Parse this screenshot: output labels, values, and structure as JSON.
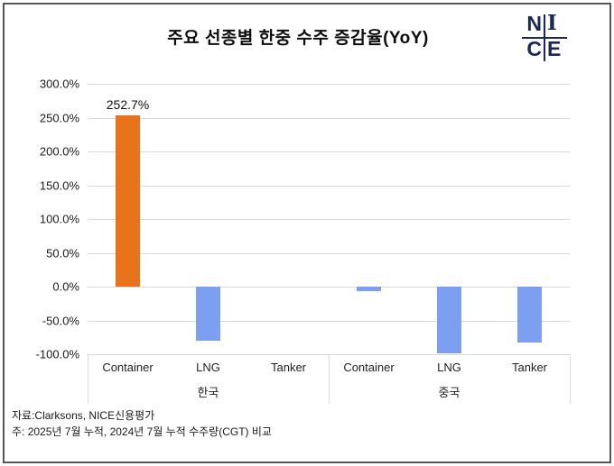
{
  "title": "주요 선종별 한중 수주 증감율(YoY)",
  "logo": {
    "letters": {
      "n": "N",
      "i": "I",
      "c": "C",
      "e": "E"
    },
    "color": "#1a2857"
  },
  "footer": {
    "source": "자료:Clarksons, NICE신용평가",
    "note": "주: 2025년 7월 누적, 2024년 7월 누적 수주량(CGT) 비교"
  },
  "colors": {
    "positive_bar": "#e8731a",
    "negative_bar": "#7c9ff2",
    "gridline": "#d9d9d9",
    "separator": "#d9d9d9",
    "logo_navy": "#1a2857",
    "frame_border": "#56575b"
  },
  "chart_data": {
    "type": "bar",
    "title": "주요 선종별 한중 수주 증감율(YoY)",
    "xlabel": "",
    "ylabel": "",
    "ylim": [
      -100,
      300
    ],
    "ytick_step": 50,
    "yticks": [
      "300.0%",
      "250.0%",
      "200.0%",
      "150.0%",
      "100.0%",
      "50.0%",
      "0.0%",
      "-50.0%",
      "-100.0%"
    ],
    "grid": true,
    "legend_position": "none",
    "groups": [
      {
        "label": "한국",
        "categories": [
          "Container",
          "LNG",
          "Tanker"
        ]
      },
      {
        "label": "중국",
        "categories": [
          "Container",
          "LNG",
          "Tanker"
        ]
      }
    ],
    "categories": [
      "Container",
      "LNG",
      "Tanker",
      "Container",
      "LNG",
      "Tanker"
    ],
    "values": [
      252.7,
      -80,
      0,
      -7,
      -99,
      -83
    ],
    "data_labels": [
      "252.7%",
      null,
      null,
      null,
      null,
      null
    ],
    "bar_colors": [
      "#e8731a",
      "#7c9ff2",
      "#7c9ff2",
      "#7c9ff2",
      "#7c9ff2",
      "#7c9ff2"
    ]
  }
}
